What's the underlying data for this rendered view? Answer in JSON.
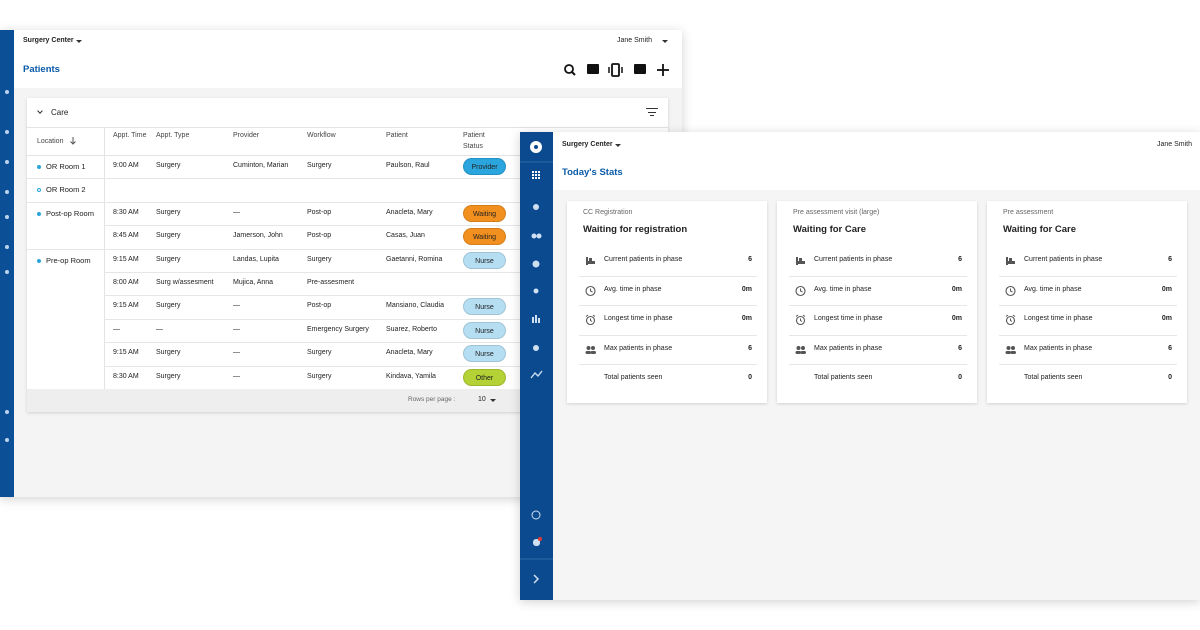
{
  "back_window": {
    "header": {
      "facility": "Surgery Center",
      "user": "Jane Smith"
    },
    "page_title": "Patients",
    "section": "Care",
    "table": {
      "columns": [
        "Location",
        "Appt. Time",
        "Appt. Type",
        "Provider",
        "Workflow",
        "Patient",
        "Patient Status"
      ],
      "rows": [
        [
          "OR Room 1",
          "9:00 AM",
          "Surgery",
          "Cuminton, Marian",
          "Surgery",
          "Paulson, Raul",
          {
            "label": "Provider",
            "color": "#2aa5de"
          }
        ],
        [
          "OR Room 2",
          null,
          null,
          null,
          null,
          null,
          null
        ],
        [
          "Post-op Room",
          "8:30 AM",
          "Surgery",
          "—",
          "Post-op",
          "Anacleta, Mary",
          {
            "label": "Waiting",
            "color": "#f2901f"
          }
        ],
        [
          null,
          "8:45 AM",
          "Surgery",
          "Jamerson, John",
          "Post-op",
          "Casas, Juan",
          {
            "label": "Waiting",
            "color": "#f2901f"
          }
        ],
        [
          "Pre-op Room",
          "9:15 AM",
          "Surgery",
          "Landas, Lupita",
          "Surgery",
          "Gaetanni, Romina",
          {
            "label": "Nurse",
            "color": "#b5def3"
          }
        ],
        [
          null,
          "8:00 AM",
          "Surg w/assesment",
          "Mujica, Anna",
          "Pre-assesment",
          null,
          null
        ],
        [
          null,
          "9:15 AM",
          "Surgery",
          "—",
          "Post-op",
          "Mansiano, Claudia",
          {
            "label": "Nurse",
            "color": "#b5def3"
          }
        ],
        [
          null,
          "—",
          "—",
          "—",
          "Emergency Surgery",
          "Suarez, Roberto",
          {
            "label": "Nurse",
            "color": "#b5def3"
          }
        ],
        [
          null,
          "9:15 AM",
          "Surgery",
          "—",
          "Surgery",
          "Anacleta, Mary",
          {
            "label": "Nurse",
            "color": "#b5def3"
          }
        ],
        [
          null,
          "8:30 AM",
          "Surgery",
          "—",
          "Surgery",
          "Kindava, Yamila",
          {
            "label": "Other",
            "color": "#b4d235"
          }
        ]
      ]
    },
    "footer": {
      "rows_per_page_label": "Rows per page :",
      "rows_per_page": 10
    }
  },
  "front_window": {
    "header": {
      "facility": "Surgery Center",
      "user": "Jane Smith"
    },
    "page_title": "Today's Stats",
    "cards": [
      {
        "category": "CC Registration",
        "title": "Waiting for registration",
        "stats": [
          {
            "label": "Current patients in phase",
            "value": 6
          },
          {
            "label": "Avg. time in phase",
            "value": "0m"
          },
          {
            "label": "Longest time in phase",
            "value": "0m"
          },
          {
            "label": "Max patients in phase",
            "value": 6
          },
          {
            "label": "Total patients seen",
            "value": 0
          }
        ]
      },
      {
        "category": "Pre assessment visit (large)",
        "title": "Waiting for Care",
        "stats": [
          {
            "label": "Current patients in phase",
            "value": 6
          },
          {
            "label": "Avg. time in phase",
            "value": "0m"
          },
          {
            "label": "Longest time in phase",
            "value": "0m"
          },
          {
            "label": "Max patients in phase",
            "value": 6
          },
          {
            "label": "Total patients seen",
            "value": 0
          }
        ]
      },
      {
        "category": "Pre assessment",
        "title": "Waiting for Care",
        "stats": [
          {
            "label": "Current patients in phase",
            "value": 6
          },
          {
            "label": "Avg. time in phase",
            "value": "0m"
          },
          {
            "label": "Longest time in phase",
            "value": "0m"
          },
          {
            "label": "Max patients in phase",
            "value": 6
          },
          {
            "label": "Total patients seen",
            "value": 0
          }
        ]
      }
    ]
  }
}
